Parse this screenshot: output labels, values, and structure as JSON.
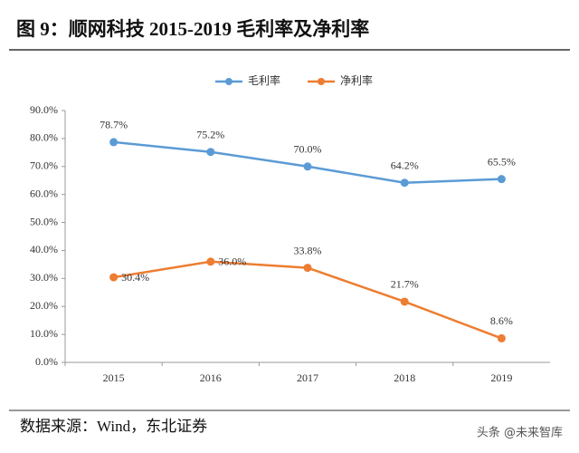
{
  "chart_data": {
    "type": "line",
    "title": "图 9：顺网科技 2015-2019 毛利率及净利率",
    "source": "数据来源：Wind，东北证券",
    "watermark": "头条 @未来智库",
    "categories": [
      "2015",
      "2016",
      "2017",
      "2018",
      "2019"
    ],
    "series": [
      {
        "name": "毛利率",
        "color": "#5b9bd5",
        "values": [
          78.7,
          75.2,
          70.0,
          64.2,
          65.5
        ],
        "value_labels": [
          "78.7%",
          "75.2%",
          "70.0%",
          "64.2%",
          "65.5%"
        ]
      },
      {
        "name": "净利率",
        "color": "#ed7d31",
        "values": [
          30.4,
          36.0,
          33.8,
          21.7,
          8.6
        ],
        "value_labels": [
          "30.4%",
          "36.0%",
          "33.8%",
          "21.7%",
          "8.6%"
        ]
      }
    ],
    "ylim": [
      0,
      90
    ],
    "yticks": [
      {
        "value": 0,
        "label": "0.0%"
      },
      {
        "value": 10,
        "label": "10.0%"
      },
      {
        "value": 20,
        "label": "20.0%"
      },
      {
        "value": 30,
        "label": "30.0%"
      },
      {
        "value": 40,
        "label": "40.0%"
      },
      {
        "value": 50,
        "label": "50.0%"
      },
      {
        "value": 60,
        "label": "60.0%"
      },
      {
        "value": 70,
        "label": "70.0%"
      },
      {
        "value": 80,
        "label": "80.0%"
      },
      {
        "value": 90,
        "label": "90.0%"
      }
    ],
    "legend": "top",
    "grid": false
  }
}
